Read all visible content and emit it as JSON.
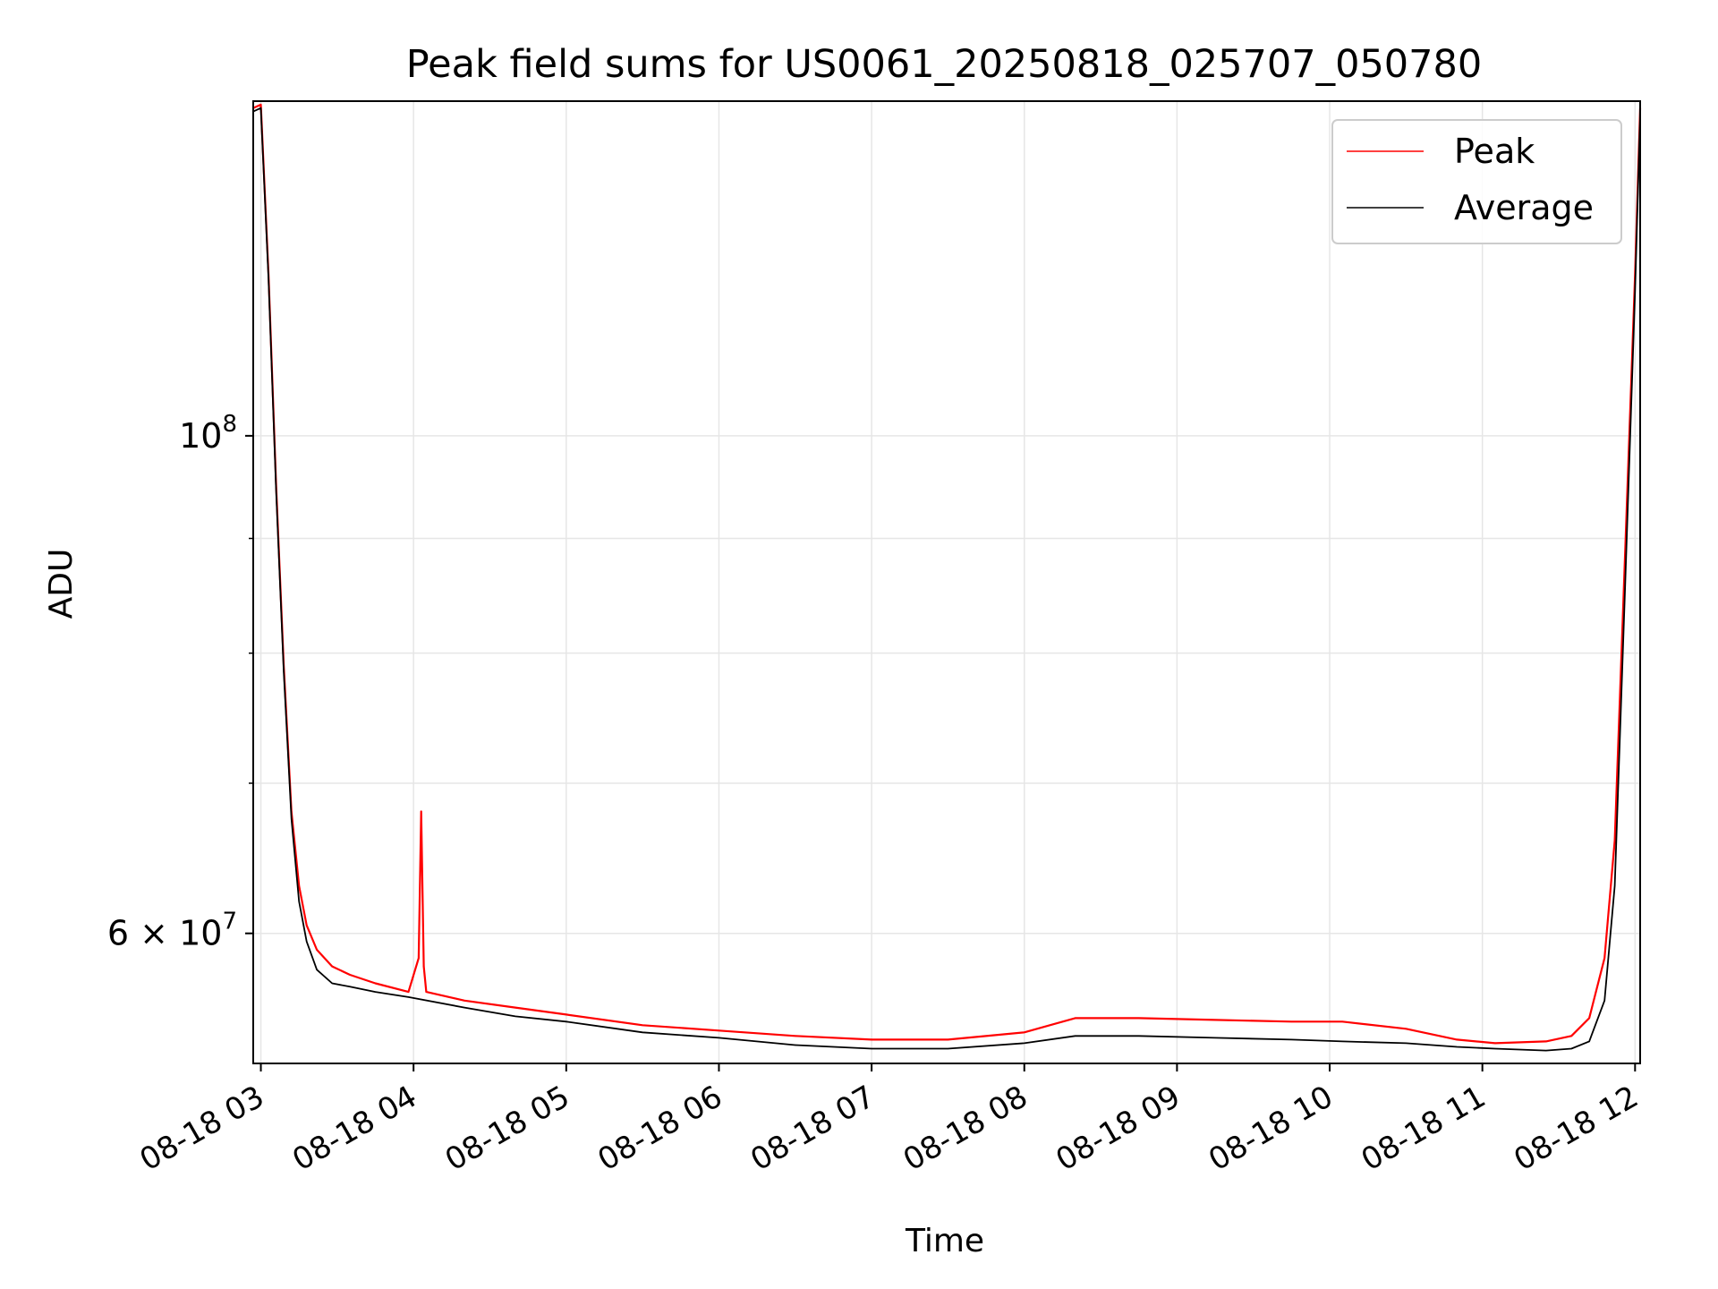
{
  "chart_data": {
    "type": "line",
    "title": "Peak field sums for US0061_20250818_025707_050780",
    "xlabel": "Time",
    "ylabel": "ADU",
    "y_scale": "log",
    "ylim": [
      52500000,
      141000000
    ],
    "xlim": [
      "2025-08-18 02:57",
      "2025-08-18 12:02"
    ],
    "grid": true,
    "legend": {
      "placement": "upper right",
      "entries": [
        "Peak",
        "Average"
      ]
    },
    "x_tick_labels": [
      "08-18 03",
      "08-18 04",
      "08-18 05",
      "08-18 06",
      "08-18 07",
      "08-18 08",
      "08-18 09",
      "08-18 10",
      "08-18 11",
      "08-18 12"
    ],
    "x_ticks": [
      "2025-08-18 03:00",
      "2025-08-18 04:00",
      "2025-08-18 05:00",
      "2025-08-18 06:00",
      "2025-08-18 07:00",
      "2025-08-18 08:00",
      "2025-08-18 09:00",
      "2025-08-18 10:00",
      "2025-08-18 11:00",
      "2025-08-18 12:00"
    ],
    "y_tick_labels": [
      {
        "value": 100000000,
        "base": "10",
        "exp": "8"
      },
      {
        "value": 60000000,
        "prefix": "6 × ",
        "base": "10",
        "exp": "7"
      }
    ],
    "y_minor_ticks": [
      70000000,
      80000000,
      90000000
    ],
    "series": [
      {
        "name": "Peak",
        "color": "#ff0000",
        "x": [
          "2025-08-18 02:57",
          "2025-08-18 03:00",
          "2025-08-18 03:03",
          "2025-08-18 03:06",
          "2025-08-18 03:09",
          "2025-08-18 03:12",
          "2025-08-18 03:15",
          "2025-08-18 03:18",
          "2025-08-18 03:22",
          "2025-08-18 03:28",
          "2025-08-18 03:35",
          "2025-08-18 03:45",
          "2025-08-18 03:58",
          "2025-08-18 04:02",
          "2025-08-18 04:03",
          "2025-08-18 04:04",
          "2025-08-18 04:05",
          "2025-08-18 04:20",
          "2025-08-18 04:40",
          "2025-08-18 05:00",
          "2025-08-18 05:30",
          "2025-08-18 06:00",
          "2025-08-18 06:30",
          "2025-08-18 07:00",
          "2025-08-18 07:30",
          "2025-08-18 08:00",
          "2025-08-18 08:20",
          "2025-08-18 08:45",
          "2025-08-18 09:15",
          "2025-08-18 09:45",
          "2025-08-18 10:05",
          "2025-08-18 10:30",
          "2025-08-18 10:50",
          "2025-08-18 11:05",
          "2025-08-18 11:25",
          "2025-08-18 11:35",
          "2025-08-18 11:42",
          "2025-08-18 11:48",
          "2025-08-18 11:52",
          "2025-08-18 11:56",
          "2025-08-18 12:00",
          "2025-08-18 12:02"
        ],
        "values": [
          140000000,
          140500000,
          118000000,
          95000000,
          79000000,
          68000000,
          63000000,
          60500000,
          59000000,
          58000000,
          57500000,
          57000000,
          56500000,
          58500000,
          68000000,
          58000000,
          56500000,
          56000000,
          55600000,
          55200000,
          54600000,
          54300000,
          54000000,
          53800000,
          53800000,
          54200000,
          55000000,
          55000000,
          54900000,
          54800000,
          54800000,
          54400000,
          53800000,
          53600000,
          53700000,
          54000000,
          55000000,
          58500000,
          66000000,
          88000000,
          118000000,
          140000000
        ]
      },
      {
        "name": "Average",
        "color": "#000000",
        "x": [
          "2025-08-18 02:57",
          "2025-08-18 03:00",
          "2025-08-18 03:03",
          "2025-08-18 03:06",
          "2025-08-18 03:09",
          "2025-08-18 03:12",
          "2025-08-18 03:15",
          "2025-08-18 03:18",
          "2025-08-18 03:22",
          "2025-08-18 03:28",
          "2025-08-18 03:35",
          "2025-08-18 03:45",
          "2025-08-18 03:58",
          "2025-08-18 04:20",
          "2025-08-18 04:40",
          "2025-08-18 05:00",
          "2025-08-18 05:30",
          "2025-08-18 06:00",
          "2025-08-18 06:30",
          "2025-08-18 07:00",
          "2025-08-18 07:30",
          "2025-08-18 08:00",
          "2025-08-18 08:20",
          "2025-08-18 08:45",
          "2025-08-18 09:15",
          "2025-08-18 09:45",
          "2025-08-18 10:05",
          "2025-08-18 10:30",
          "2025-08-18 10:50",
          "2025-08-18 11:05",
          "2025-08-18 11:25",
          "2025-08-18 11:35",
          "2025-08-18 11:42",
          "2025-08-18 11:48",
          "2025-08-18 11:52",
          "2025-08-18 11:56",
          "2025-08-18 12:00",
          "2025-08-18 12:02"
        ],
        "values": [
          139500000,
          140000000,
          117500000,
          94500000,
          78500000,
          67500000,
          62000000,
          59500000,
          57800000,
          57000000,
          56800000,
          56500000,
          56200000,
          55600000,
          55100000,
          54800000,
          54200000,
          53900000,
          53500000,
          53300000,
          53300000,
          53600000,
          54000000,
          54000000,
          53900000,
          53800000,
          53700000,
          53600000,
          53400000,
          53300000,
          53200000,
          53300000,
          53700000,
          56000000,
          63000000,
          85000000,
          116000000,
          139000000
        ]
      }
    ]
  }
}
